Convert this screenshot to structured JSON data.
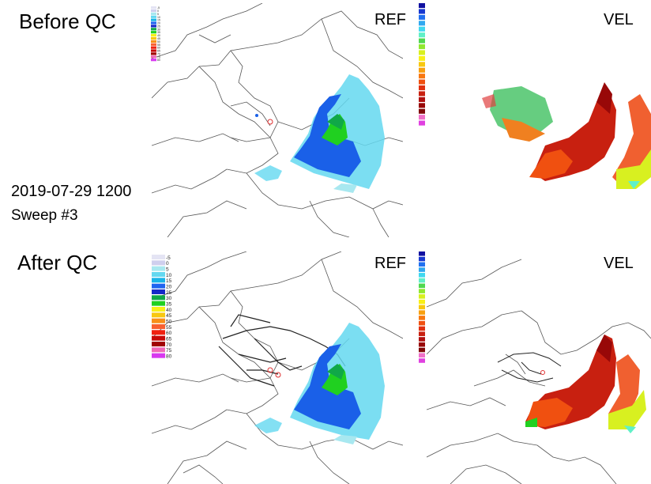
{
  "labels": {
    "before": "Before QC",
    "after": "After QC",
    "datetime": "2019-07-29 1200",
    "sweep": "Sweep #3",
    "ref_top": "REF",
    "vel_top": "VEL",
    "ref_bottom": "REF",
    "vel_bottom": "VEL"
  },
  "ref_colorbar": {
    "values": [
      "-5",
      "0",
      "5",
      "10",
      "15",
      "20",
      "25",
      "30",
      "35",
      "40",
      "45",
      "50",
      "55",
      "60",
      "65",
      "70",
      "75",
      "80"
    ],
    "colors": [
      "#e4e4f4",
      "#cfcfee",
      "#a8e8f0",
      "#64d8f0",
      "#1ab4e8",
      "#2064f0",
      "#1428c8",
      "#10a848",
      "#20d020",
      "#f8f018",
      "#f8c810",
      "#f89018",
      "#f86030",
      "#f02010",
      "#c80808",
      "#a00404",
      "#f068b8",
      "#d838f0"
    ]
  },
  "vel_colorbar": {
    "colors": [
      "#1010a0",
      "#1838d0",
      "#2070f0",
      "#30a8f0",
      "#40d8f0",
      "#60f0c8",
      "#50d850",
      "#90e830",
      "#d8f020",
      "#f8f018",
      "#f8c810",
      "#f8a010",
      "#f87810",
      "#f05010",
      "#e03010",
      "#c82010",
      "#b01010",
      "#980808",
      "#800808",
      "#f070c8",
      "#e040e0"
    ]
  }
}
